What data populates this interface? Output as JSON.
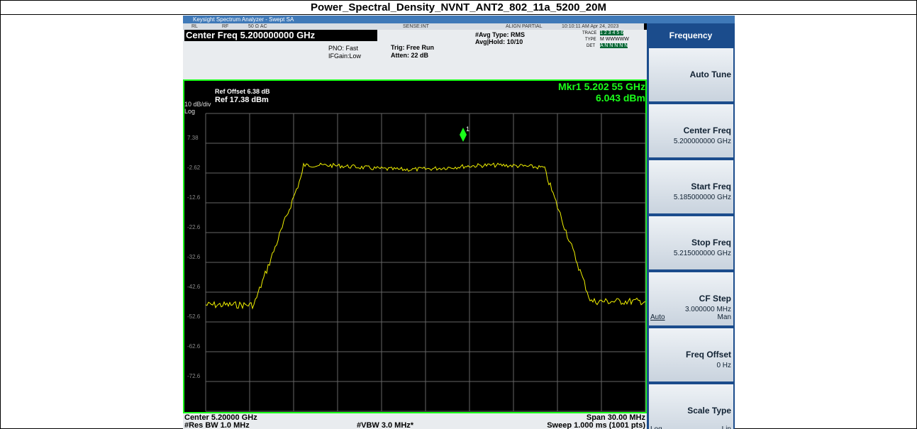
{
  "title": "Power_Spectral_Density_NVNT_ANT2_802_11a_5200_20M",
  "window": {
    "title": "Keysight Spectrum Analyzer - Swept SA",
    "status": [
      "RL",
      "RF",
      "50 Ω  AC",
      "SENSE:INT",
      "ALIGN PARTIAL",
      "10:10:11 AM Apr 24, 2023"
    ]
  },
  "header": {
    "center_freq": "Center Freq 5.200000000 GHz",
    "pno": "PNO: Fast",
    "ifgain": "IFGain:Low",
    "trig": "Trig: Free Run",
    "atten": "Atten: 22 dB",
    "avg_type": "#Avg Type: RMS",
    "avg_hold": "Avg|Hold: 10/10",
    "trace_label": "TRACE",
    "trace": "1 2 3 4 5 6",
    "type_label": "TYPE",
    "type": "M WWWWW",
    "det_label": "DET",
    "det": "A N N N N N"
  },
  "plot": {
    "ref_offset": "Ref Offset 6.38 dB",
    "ref": "Ref 17.38 dBm",
    "scale": "10 dB/div",
    "mode": "Log",
    "marker_freq": "Mkr1 5.202 55 GHz",
    "marker_level": "6.043 dBm",
    "marker_id": "1",
    "row_labels": [
      "7.38",
      "-2.62",
      "-12.6",
      "-22.6",
      "-32.6",
      "-42.6",
      "-52.6",
      "-62.6",
      "-72.6"
    ]
  },
  "footer": {
    "center": "Center 5.20000 GHz",
    "rbw": "#Res BW 1.0 MHz",
    "vbw": "#VBW 3.0 MHz*",
    "span": "Span 30.00 MHz",
    "sweep": "Sweep  1.000 ms (1001 pts)"
  },
  "menu": {
    "title": "Frequency",
    "keys": [
      {
        "label": "Auto Tune"
      },
      {
        "label": "Center Freq",
        "value": "5.200000000 GHz"
      },
      {
        "label": "Start Freq",
        "value": "5.185000000 GHz"
      },
      {
        "label": "Stop Freq",
        "value": "5.215000000 GHz"
      },
      {
        "label": "CF Step",
        "value": "3.000000 MHz",
        "left": "Auto",
        "right": "Man"
      },
      {
        "label": "Freq Offset",
        "value": "0 Hz"
      },
      {
        "label": "Scale Type",
        "left": "Log",
        "right": "Lin"
      }
    ]
  }
}
